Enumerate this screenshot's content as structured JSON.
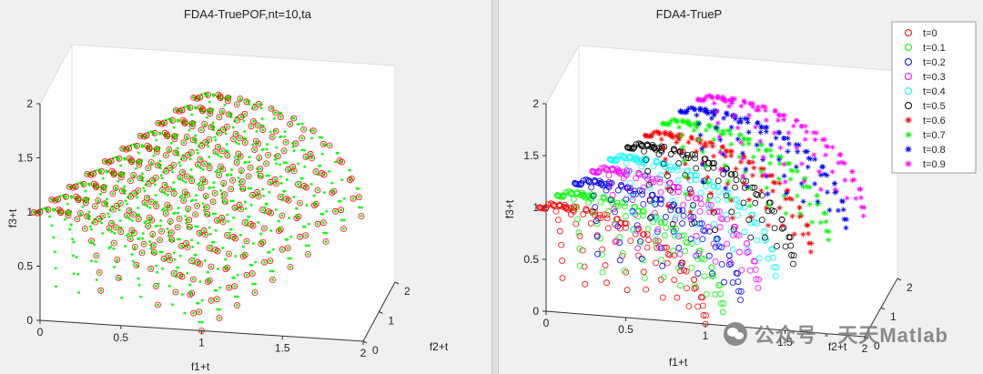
{
  "chart_data": [
    {
      "type": "scatter",
      "title": "FDA4-TruePOF,nt=10,ta",
      "xlabel": "f1+t",
      "ylabel": "f2+t",
      "zlabel": "f3+t",
      "xlim": [
        0,
        2
      ],
      "ylim": [
        0,
        2
      ],
      "zlim": [
        0,
        2
      ],
      "x_ticks": [
        "0",
        "0.5",
        "1",
        "1.5",
        "2"
      ],
      "y_ticks": [
        "0",
        "1",
        "2"
      ],
      "z_ticks": [
        "0",
        "0.5",
        "1",
        "1.5",
        "2"
      ],
      "grid": false,
      "legend": null,
      "series": [
        {
          "marker": "o",
          "color": "#ff0000",
          "shape": "spherical front, shift t per time step",
          "t_values": [
            0,
            0.1,
            0.2,
            0.3,
            0.4,
            0.5,
            0.6,
            0.7,
            0.8,
            0.9
          ],
          "radius": 1
        },
        {
          "marker": ".",
          "color": "#00ff00",
          "shape": "spherical front, shift t per time step",
          "t_values": [
            0,
            0.1,
            0.2,
            0.3,
            0.4,
            0.5,
            0.6,
            0.7,
            0.8,
            0.9
          ],
          "radius": 1
        }
      ]
    },
    {
      "type": "scatter",
      "title": "FDA4-TrueP",
      "xlabel": "f1+t",
      "ylabel": "f2+t",
      "zlabel": "f3+t",
      "xlim": [
        0,
        2
      ],
      "ylim": [
        0,
        2
      ],
      "zlim": [
        0,
        2
      ],
      "x_ticks": [
        "0",
        "0.5",
        "1",
        "1.5",
        "2"
      ],
      "y_ticks": [
        "0",
        "1",
        "2"
      ],
      "z_ticks": [
        "0",
        "0.5",
        "1",
        "1.5",
        "2"
      ],
      "grid": false,
      "legend": "top-right",
      "series": [
        {
          "name": "t=0",
          "t": 0,
          "marker": "o",
          "color": "#ff0000"
        },
        {
          "name": "t=0.1",
          "t": 0.1,
          "marker": "o",
          "color": "#00ff00"
        },
        {
          "name": "t=0.2",
          "t": 0.2,
          "marker": "o",
          "color": "#0000ff"
        },
        {
          "name": "t=0.3",
          "t": 0.3,
          "marker": "o",
          "color": "#ff00ff"
        },
        {
          "name": "t=0.4",
          "t": 0.4,
          "marker": "o",
          "color": "#00ffff"
        },
        {
          "name": "t=0.5",
          "t": 0.5,
          "marker": "o",
          "color": "#000000"
        },
        {
          "name": "t=0.6",
          "t": 0.6,
          "marker": "*",
          "color": "#ff0000"
        },
        {
          "name": "t=0.7",
          "t": 0.7,
          "marker": "*",
          "color": "#00ff00"
        },
        {
          "name": "t=0.8",
          "t": 0.8,
          "marker": "*",
          "color": "#0000ff"
        },
        {
          "name": "t=0.9",
          "t": 0.9,
          "marker": "*",
          "color": "#ff00ff"
        }
      ]
    }
  ],
  "watermark": {
    "text": "公众号 · 天天Matlab"
  }
}
